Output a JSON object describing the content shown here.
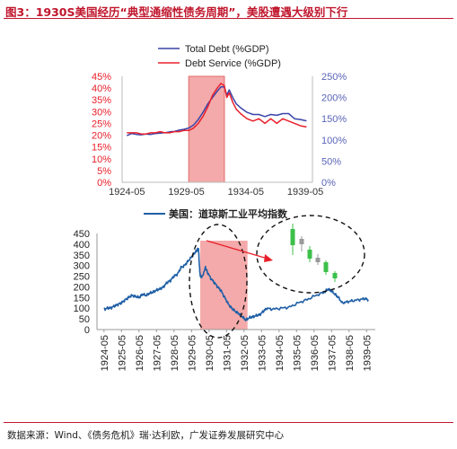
{
  "figure": {
    "title": "图3：1930S美国经历“典型通缩性债务周期”，美股遭遇大级别下行",
    "source": "数据来源：Wind、《债务危机》瑞·达利欧，广发证券发展研究中心"
  },
  "colors": {
    "accent": "#c0162d",
    "total_debt": "#3a44a8",
    "debt_service": "#e8202b",
    "dow": "#1f5fa6",
    "highlight": "#f4aaaa",
    "candle_green": "#3cc04a"
  },
  "chart_data": [
    {
      "type": "line",
      "series": [
        {
          "name": "Total Debt (%GDP)",
          "axis": "right",
          "x": [
            1924.4,
            1924.8,
            1925.2,
            1925.6,
            1926.0,
            1926.4,
            1926.8,
            1927.2,
            1927.6,
            1928.0,
            1928.4,
            1928.8,
            1929.2,
            1929.6,
            1930.0,
            1930.4,
            1930.8,
            1931.2,
            1931.6,
            1932.0,
            1932.3,
            1932.6,
            1932.8,
            1933.0,
            1933.3,
            1933.6,
            1934.0,
            1934.5,
            1935.0,
            1935.5,
            1936.0,
            1936.5,
            1937.0,
            1937.5,
            1938.0,
            1938.5,
            1939.0,
            1939.5
          ],
          "values": [
            110,
            115,
            113,
            112,
            114,
            113,
            115,
            116,
            117,
            119,
            120,
            123,
            125,
            128,
            135,
            148,
            165,
            185,
            200,
            215,
            225,
            225,
            205,
            218,
            200,
            185,
            175,
            165,
            160,
            160,
            155,
            160,
            158,
            162,
            162,
            150,
            148,
            145
          ]
        },
        {
          "name": "Debt Service (%GDP)",
          "axis": "left",
          "x": [
            1924.4,
            1924.8,
            1925.2,
            1925.6,
            1926.0,
            1926.4,
            1926.8,
            1927.2,
            1927.6,
            1928.0,
            1928.4,
            1928.8,
            1929.2,
            1929.6,
            1930.0,
            1930.4,
            1930.8,
            1931.2,
            1931.6,
            1932.0,
            1932.3,
            1932.6,
            1932.8,
            1933.0,
            1933.3,
            1933.6,
            1934.0,
            1934.5,
            1935.0,
            1935.5,
            1936.0,
            1936.5,
            1937.0,
            1937.5,
            1938.0,
            1938.5,
            1939.0,
            1939.5
          ],
          "values": [
            21,
            21,
            21,
            20.5,
            20.5,
            21,
            21,
            21.5,
            21,
            21,
            21.5,
            21.5,
            22,
            22,
            23,
            25,
            28,
            32,
            37,
            40,
            42,
            41,
            36,
            38,
            34,
            31,
            29,
            27,
            26,
            27,
            25,
            27,
            25,
            27,
            26,
            25,
            24,
            23.5
          ]
        }
      ],
      "x_ticks": [
        "1924-05",
        "1929-05",
        "1934-05",
        "1939-05"
      ],
      "x_tick_values": [
        1924.4,
        1929.4,
        1934.4,
        1939.4
      ],
      "y_left_ticks": [
        "0%",
        "5%",
        "10%",
        "15%",
        "20%",
        "25%",
        "30%",
        "35%",
        "40%",
        "45%"
      ],
      "y_right_ticks": [
        "0%",
        "50%",
        "100%",
        "150%",
        "200%",
        "250%"
      ],
      "xlim": [
        1924.0,
        1940.0
      ],
      "ylim_left": [
        0,
        45
      ],
      "ylim_right": [
        0,
        250
      ],
      "highlight_x": [
        1929.6,
        1932.6
      ],
      "legend": [
        "Total Debt (%GDP)",
        "Debt Service (%GDP)"
      ],
      "legend_position": "top-center",
      "grid": false
    },
    {
      "type": "line",
      "series": [
        {
          "name": "美国：道琼斯工业平均指数",
          "x": [
            1924.4,
            1924.6,
            1924.8,
            1925.0,
            1925.2,
            1925.4,
            1925.6,
            1925.8,
            1926.0,
            1926.2,
            1926.4,
            1926.6,
            1926.8,
            1927.0,
            1927.2,
            1927.4,
            1927.6,
            1927.8,
            1928.0,
            1928.2,
            1928.4,
            1928.6,
            1928.8,
            1929.0,
            1929.2,
            1929.4,
            1929.6,
            1929.7,
            1929.8,
            1929.85,
            1929.9,
            1930.0,
            1930.2,
            1930.3,
            1930.5,
            1930.7,
            1930.9,
            1931.1,
            1931.3,
            1931.5,
            1931.7,
            1931.9,
            1932.1,
            1932.3,
            1932.5,
            1932.7,
            1932.9,
            1933.1,
            1933.3,
            1933.5,
            1933.7,
            1934.0,
            1934.5,
            1935.0,
            1935.5,
            1936.0,
            1936.5,
            1937.0,
            1937.2,
            1937.4,
            1937.6,
            1937.8,
            1938.0,
            1938.3,
            1938.6,
            1939.0,
            1939.3,
            1939.5
          ],
          "values": [
            95,
            100,
            102,
            110,
            118,
            125,
            138,
            150,
            160,
            155,
            150,
            165,
            160,
            170,
            175,
            185,
            190,
            200,
            220,
            230,
            250,
            260,
            290,
            300,
            320,
            340,
            360,
            370,
            381,
            300,
            250,
            245,
            290,
            270,
            240,
            220,
            200,
            180,
            150,
            120,
            100,
            85,
            75,
            60,
            45,
            55,
            60,
            65,
            70,
            85,
            100,
            95,
            100,
            105,
            125,
            140,
            160,
            175,
            190,
            180,
            165,
            150,
            125,
            130,
            135,
            140,
            145,
            140
          ]
        }
      ],
      "x_ticks": [
        "1924-05",
        "1925-05",
        "1926-05",
        "1927-05",
        "1928-05",
        "1929-05",
        "1930-05",
        "1931-05",
        "1932-05",
        "1933-05",
        "1934-05",
        "1935-05",
        "1936-05",
        "1937-05",
        "1938-05",
        "1939-05"
      ],
      "x_tick_values": [
        1924.4,
        1925.4,
        1926.4,
        1927.4,
        1928.4,
        1929.4,
        1930.4,
        1931.4,
        1932.4,
        1933.4,
        1934.4,
        1935.4,
        1936.4,
        1937.4,
        1938.4,
        1939.4
      ],
      "y_ticks": [
        "0",
        "50",
        "100",
        "150",
        "200",
        "250",
        "300",
        "350",
        "400",
        "450"
      ],
      "xlim": [
        1924.0,
        1939.9
      ],
      "ylim": [
        0,
        450
      ],
      "highlight_x": [
        1929.9,
        1932.6
      ],
      "legend": [
        "美国：道琼斯工业平均指数"
      ],
      "legend_position": "top-center",
      "grid": false
    }
  ]
}
